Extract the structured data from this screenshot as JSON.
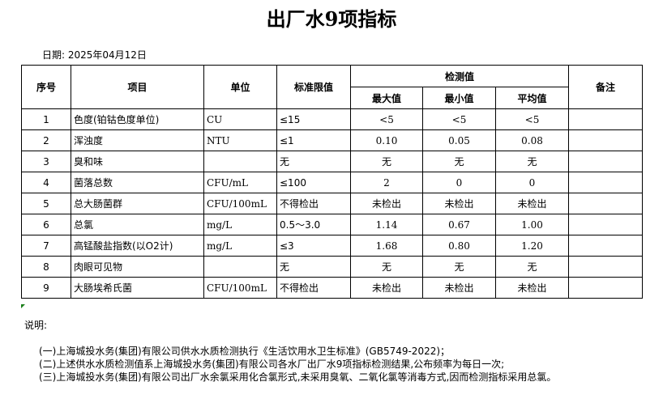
{
  "title": "出厂水9项指标",
  "date": "日期: 2025年04月12日",
  "headers": {
    "no": "序号",
    "item": "项目",
    "unit": "单位",
    "limit": "标准限值",
    "measured": "检测值",
    "max": "最大值",
    "min": "最小值",
    "avg": "平均值",
    "remark": "备注"
  },
  "rows": [
    {
      "no": "1",
      "item": "色度(铂钴色度单位)",
      "unit": "CU",
      "limit": "≤15",
      "max": "<5",
      "min": "<5",
      "avg": "<5",
      "remark": ""
    },
    {
      "no": "2",
      "item": "浑浊度",
      "unit": "NTU",
      "limit": "≤1",
      "max": "0.10",
      "min": "0.05",
      "avg": "0.08",
      "remark": ""
    },
    {
      "no": "3",
      "item": "臭和味",
      "unit": "",
      "limit": "无",
      "max": "无",
      "min": "无",
      "avg": "无",
      "remark": ""
    },
    {
      "no": "4",
      "item": "菌落总数",
      "unit": "CFU/mL",
      "limit": "≤100",
      "max": "2",
      "min": "0",
      "avg": "0",
      "remark": ""
    },
    {
      "no": "5",
      "item": "总大肠菌群",
      "unit": "CFU/100mL",
      "limit": "不得检出",
      "max": "未检出",
      "min": "未检出",
      "avg": "未检出",
      "remark": ""
    },
    {
      "no": "6",
      "item": "总氯",
      "unit": "mg/L",
      "limit": "0.5～3.0",
      "max": "1.14",
      "min": "0.67",
      "avg": "1.00",
      "remark": ""
    },
    {
      "no": "7",
      "item": "高锰酸盐指数(以O2计)",
      "unit": "mg/L",
      "limit": "≤3",
      "max": "1.68",
      "min": "0.80",
      "avg": "1.20",
      "remark": ""
    },
    {
      "no": "8",
      "item": "肉眼可见物",
      "unit": "",
      "limit": "无",
      "max": "无",
      "min": "无",
      "avg": "无",
      "remark": ""
    },
    {
      "no": "9",
      "item": "大肠埃希氏菌",
      "unit": "CFU/100mL",
      "limit": "不得检出",
      "max": "未检出",
      "min": "未检出",
      "avg": "未检出",
      "remark": ""
    }
  ],
  "notes": {
    "label": "说明:",
    "lines": [
      "(一)上海城投水务(集团)有限公司供水水质检测执行《生活饮用水卫生标准》(GB5749-2022)；",
      "(二)上述供水水质检测值系上海城投水务(集团)有限公司各水厂出厂水9项指标检测结果,公布频率为每日一次;",
      "(三)上海城投水务(集团)有限公司出厂水余氯采用化合氯形式,未采用臭氧、二氧化氯等消毒方式,因而检测指标采用总氯。"
    ]
  }
}
